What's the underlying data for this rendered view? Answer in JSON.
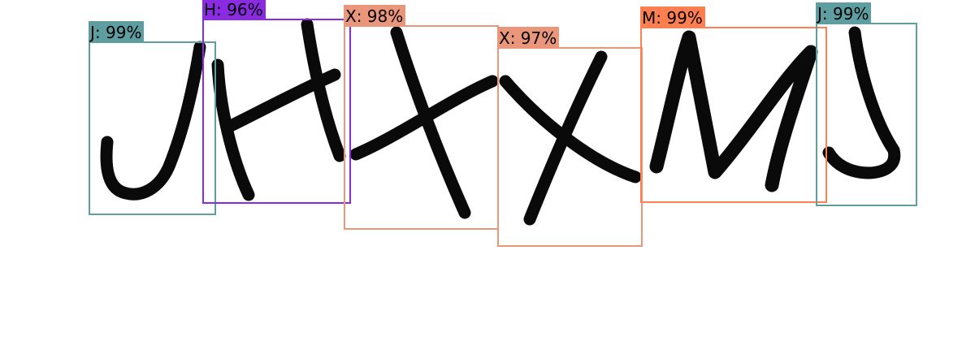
{
  "detections": [
    {
      "char": "J",
      "label": "J: 99%",
      "color": "#5f9ea0"
    },
    {
      "char": "H",
      "label": "H: 96%",
      "color": "#8a2be2"
    },
    {
      "char": "X",
      "label": "X: 98%",
      "color": "#e9967a"
    },
    {
      "char": "X",
      "label": "X: 97%",
      "color": "#e9967a"
    },
    {
      "char": "M",
      "label": "M: 99%",
      "color": "#ff7f50"
    },
    {
      "char": "J",
      "label": "J: 99%",
      "color": "#5f9ea0"
    }
  ]
}
